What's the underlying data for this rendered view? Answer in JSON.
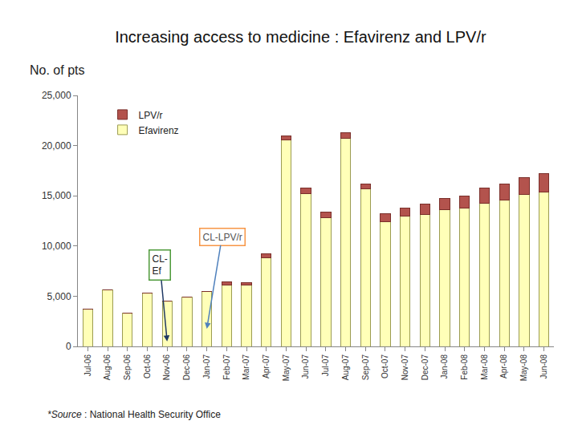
{
  "chart_data": {
    "type": "bar",
    "title": "Increasing access to medicine : Efavirenz and LPV/r",
    "y_label": "No. of pts",
    "source": [
      "*Source",
      ": National Health Security Office"
    ],
    "categories": [
      "Jul-06",
      "Aug-06",
      "Sep-06",
      "Oct-06",
      "Nov-06",
      "Dec-06",
      "Jan-07",
      "Feb-07",
      "Mar-07",
      "Apr-07",
      "May-07",
      "Jun-07",
      "Jul-07",
      "Aug-07",
      "Sep-07",
      "Oct-07",
      "Nov-07",
      "Dec-07",
      "Jan-08",
      "Feb-08",
      "Mar-08",
      "Apr-08",
      "May-08",
      "Jun-08"
    ],
    "series": [
      {
        "name": "Efavirenz",
        "color": "#ffffb8",
        "values": [
          3750,
          5600,
          3300,
          5300,
          4500,
          4900,
          5450,
          6150,
          6150,
          8800,
          20550,
          15250,
          12850,
          20750,
          15700,
          12450,
          12950,
          13100,
          13600,
          13750,
          14250,
          14550,
          15100,
          15350
        ]
      },
      {
        "name": "LPV/r",
        "color": "#b3534d",
        "values": [
          0,
          0,
          0,
          0,
          0,
          0,
          0,
          250,
          200,
          450,
          450,
          500,
          500,
          500,
          500,
          750,
          800,
          1050,
          1100,
          1250,
          1500,
          1650,
          1750,
          1850
        ]
      }
    ],
    "stacked": true,
    "ylim": [
      0,
      25000
    ],
    "yticks": [
      0,
      {
        "value": 5000,
        "label": "5,000"
      },
      {
        "value": 10000,
        "label": "10,000"
      },
      {
        "value": 15000,
        "label": "15,000"
      },
      {
        "value": 20000,
        "label": "20,000"
      },
      {
        "value": 25000,
        "label": "25,000"
      }
    ],
    "grid": false,
    "legend": "upper left",
    "annotations": [
      {
        "text": [
          "CL-",
          "Ef"
        ],
        "category": "Nov-06"
      },
      {
        "text": [
          "CL-LPV/r"
        ],
        "category": "Jan-07"
      }
    ]
  }
}
